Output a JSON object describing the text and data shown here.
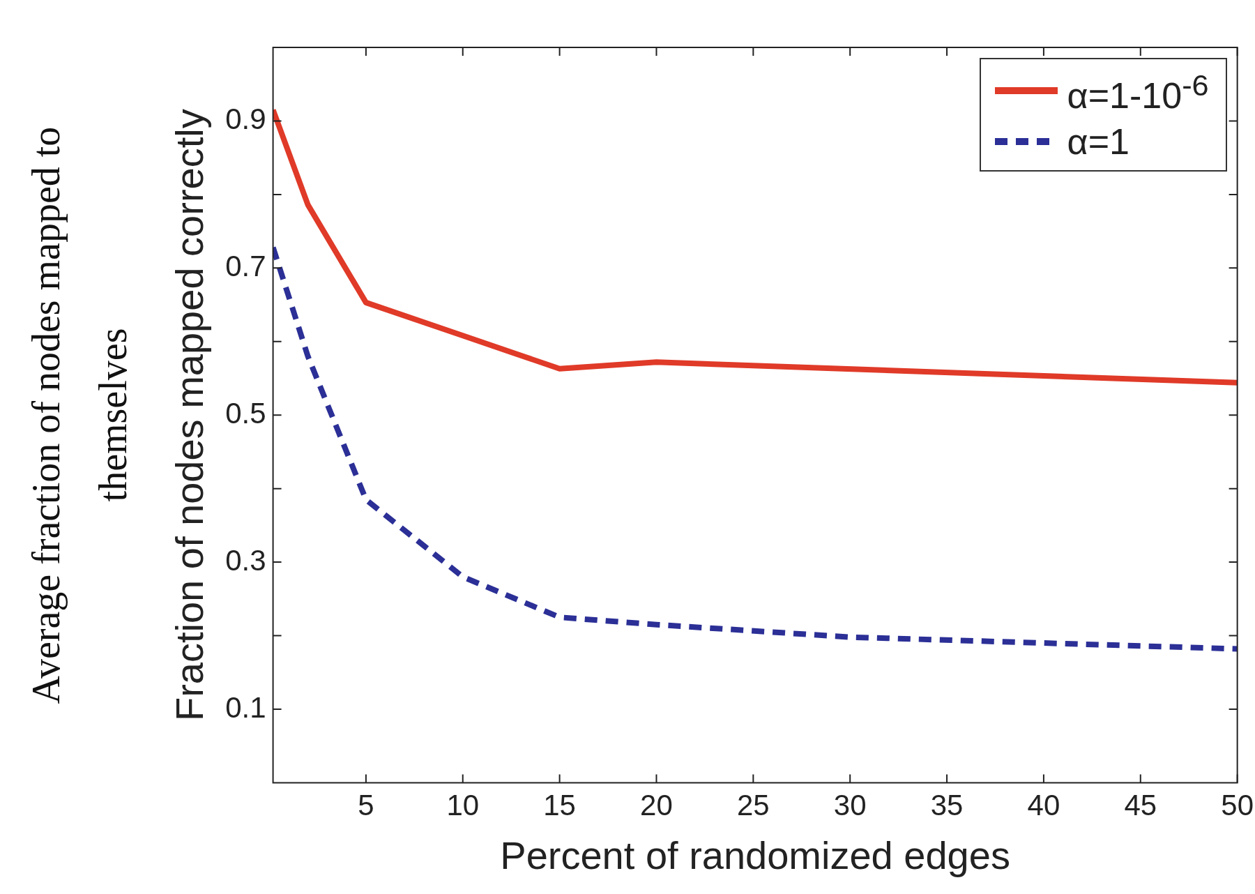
{
  "chart_data": {
    "type": "line",
    "xlabel": "Percent of randomized edges",
    "ylabel": "Fraction of nodes mapped correctly",
    "annotations": [
      "Average fraction of nodes mapped to themselves"
    ],
    "xlim": [
      0.2,
      50
    ],
    "xticks": [
      5,
      10,
      15,
      20,
      25,
      30,
      35,
      40,
      45,
      50
    ],
    "ylim": [
      0,
      1
    ],
    "yticks": [
      0.1,
      {
        "value": 0.2,
        "label": null
      },
      0.3,
      {
        "value": 0.4,
        "label": null
      },
      0.5,
      {
        "value": 0.6,
        "label": null
      },
      0.7,
      {
        "value": 0.8,
        "label": null
      },
      0.9
    ],
    "grid": false,
    "legend": "top right",
    "marker": "none",
    "series": [
      {
        "name": "α=1-10$^{-6}$",
        "color": "#e03a28",
        "line_style": "solid",
        "x": [
          0.2,
          2,
          5,
          10,
          15,
          20,
          50
        ],
        "values": [
          0.915,
          0.786,
          0.653,
          0.608,
          0.563,
          0.572,
          0.544
        ]
      },
      {
        "name": "α=1",
        "color": "#2b2f96",
        "line_style": "dashed",
        "x": [
          0.2,
          2,
          5,
          10,
          15,
          20,
          30,
          40,
          50
        ],
        "values": [
          0.728,
          0.58,
          0.385,
          0.28,
          0.225,
          0.215,
          0.198,
          0.19,
          0.182
        ]
      }
    ]
  }
}
